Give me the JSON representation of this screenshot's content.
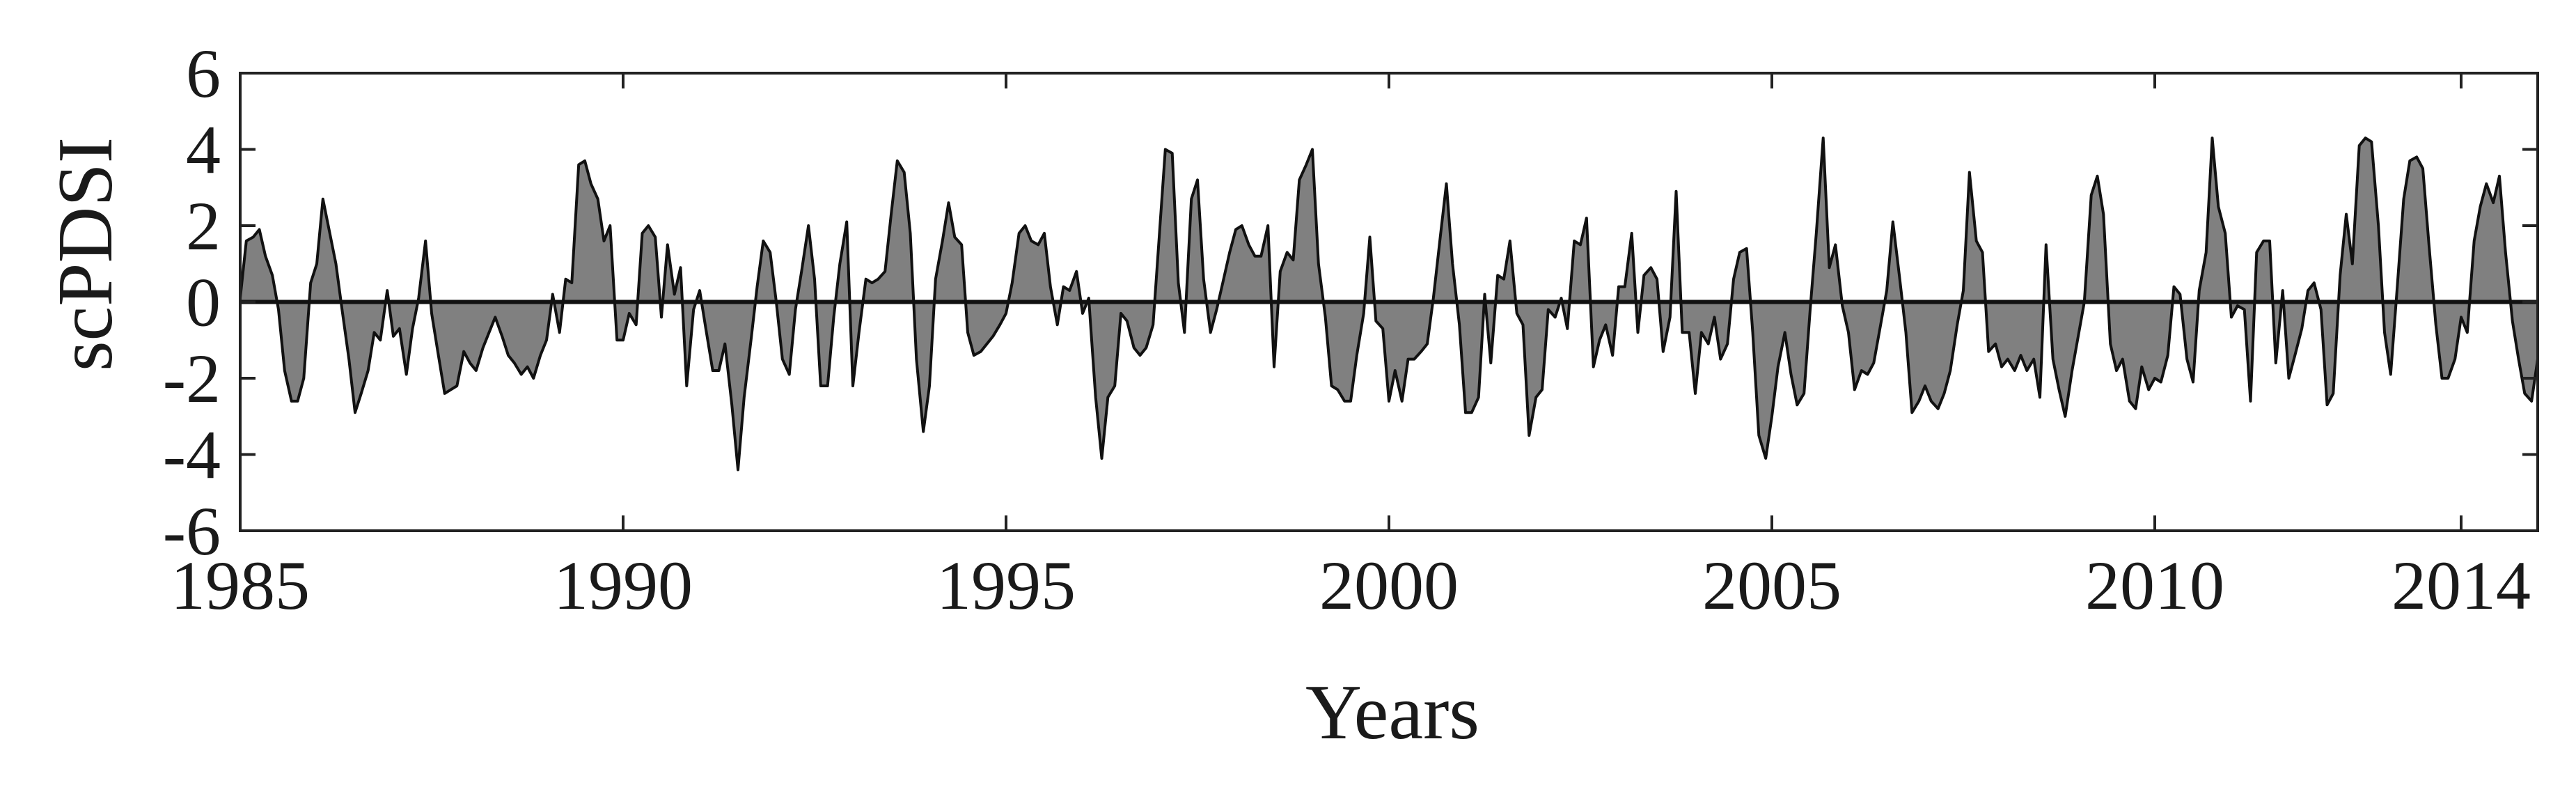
{
  "chart_data": {
    "type": "area",
    "title": "",
    "xlabel": "Years",
    "ylabel": "scPDSI",
    "xlim": [
      1985,
      2015
    ],
    "ylim": [
      -6,
      6
    ],
    "x_ticks": [
      1985,
      1990,
      1995,
      2000,
      2005,
      2010,
      2014
    ],
    "x_tick_labels": [
      "1985",
      "1990",
      "1995",
      "2000",
      "2005",
      "2010",
      "2014"
    ],
    "y_ticks": [
      -6,
      -4,
      -2,
      0,
      2,
      4,
      6
    ],
    "y_tick_labels": [
      "-6",
      "-4",
      "-2",
      "0",
      "2",
      "4",
      "6"
    ],
    "grid": false,
    "baseline": 0,
    "colors": {
      "fill": "#808080",
      "line": "#111111",
      "axis": "#222222"
    },
    "series": [
      {
        "x": [
          1985.0,
          1985.08,
          1985.17,
          1985.25,
          1985.33,
          1985.42,
          1985.5,
          1985.58,
          1985.67,
          1985.75,
          1985.83,
          1985.92,
          1986.0,
          1986.08,
          1986.17,
          1986.25,
          1986.33,
          1986.42,
          1986.5,
          1986.58,
          1986.67,
          1986.75,
          1986.83,
          1986.92,
          1987.0,
          1987.08,
          1987.17,
          1987.25,
          1987.33,
          1987.42,
          1987.5,
          1987.58,
          1987.67,
          1987.75,
          1987.83,
          1987.92,
          1988.0,
          1988.08,
          1988.17,
          1988.25,
          1988.33,
          1988.42,
          1988.5,
          1988.58,
          1988.67,
          1988.75,
          1988.83,
          1988.92,
          1989.0,
          1989.08,
          1989.17,
          1989.25,
          1989.33,
          1989.42,
          1989.5,
          1989.58,
          1989.67,
          1989.75,
          1989.83,
          1989.92,
          1990.0,
          1990.08,
          1990.17,
          1990.25,
          1990.33,
          1990.42,
          1990.5,
          1990.58,
          1990.67,
          1990.75,
          1990.83,
          1990.92,
          1991.0,
          1991.08,
          1991.17,
          1991.25,
          1991.33,
          1991.42,
          1991.5,
          1991.58,
          1991.67,
          1991.75,
          1991.83,
          1991.92,
          1992.0,
          1992.08,
          1992.17,
          1992.25,
          1992.33,
          1992.42,
          1992.5,
          1992.58,
          1992.67,
          1992.75,
          1992.83,
          1992.92,
          1993.0,
          1993.08,
          1993.17,
          1993.25,
          1993.33,
          1993.42,
          1993.5,
          1993.58,
          1993.67,
          1993.75,
          1993.83,
          1993.92,
          1994.0,
          1994.08,
          1994.17,
          1994.25,
          1994.33,
          1994.42,
          1994.5,
          1994.58,
          1994.67,
          1994.75,
          1994.83,
          1994.92,
          1995.0,
          1995.08,
          1995.17,
          1995.25,
          1995.33,
          1995.42,
          1995.5,
          1995.58,
          1995.67,
          1995.75,
          1995.83,
          1995.92,
          1996.0,
          1996.08,
          1996.17,
          1996.25,
          1996.33,
          1996.42,
          1996.5,
          1996.58,
          1996.67,
          1996.75,
          1996.83,
          1996.92,
          1997.0,
          1997.08,
          1997.17,
          1997.25,
          1997.33,
          1997.42,
          1997.5,
          1997.58,
          1997.67,
          1997.75,
          1997.83,
          1997.92,
          1998.0,
          1998.08,
          1998.17,
          1998.25,
          1998.33,
          1998.42,
          1998.5,
          1998.58,
          1998.67,
          1998.75,
          1998.83,
          1998.92,
          1999.0,
          1999.08,
          1999.17,
          1999.25,
          1999.33,
          1999.42,
          1999.5,
          1999.58,
          1999.67,
          1999.75,
          1999.83,
          1999.92,
          2000.0,
          2000.08,
          2000.17,
          2000.25,
          2000.33,
          2000.42,
          2000.5,
          2000.58,
          2000.67,
          2000.75,
          2000.83,
          2000.92,
          2001.0,
          2001.08,
          2001.17,
          2001.25,
          2001.33,
          2001.42,
          2001.5,
          2001.58,
          2001.67,
          2001.75,
          2001.83,
          2001.92,
          2002.0,
          2002.08,
          2002.17,
          2002.25,
          2002.33,
          2002.42,
          2002.5,
          2002.58,
          2002.67,
          2002.75,
          2002.83,
          2002.92,
          2003.0,
          2003.08,
          2003.17,
          2003.25,
          2003.33,
          2003.42,
          2003.5,
          2003.58,
          2003.67,
          2003.75,
          2003.83,
          2003.92,
          2004.0,
          2004.08,
          2004.17,
          2004.25,
          2004.33,
          2004.42,
          2004.5,
          2004.58,
          2004.67,
          2004.75,
          2004.83,
          2004.92,
          2005.0,
          2005.08,
          2005.17,
          2005.25,
          2005.33,
          2005.42,
          2005.5,
          2005.58,
          2005.67,
          2005.75,
          2005.83,
          2005.92,
          2006.0,
          2006.08,
          2006.17,
          2006.25,
          2006.33,
          2006.42,
          2006.5,
          2006.58,
          2006.67,
          2006.75,
          2006.83,
          2006.92,
          2007.0,
          2007.08,
          2007.17,
          2007.25,
          2007.33,
          2007.42,
          2007.5,
          2007.58,
          2007.67,
          2007.75,
          2007.83,
          2007.92,
          2008.0,
          2008.08,
          2008.17,
          2008.25,
          2008.33,
          2008.42,
          2008.5,
          2008.58,
          2008.67,
          2008.75,
          2008.83,
          2008.92,
          2009.0,
          2009.08,
          2009.17,
          2009.25,
          2009.33,
          2009.42,
          2009.5,
          2009.58,
          2009.67,
          2009.75,
          2009.83,
          2009.92,
          2010.0,
          2010.08,
          2010.17,
          2010.25,
          2010.33,
          2010.42,
          2010.5,
          2010.58,
          2010.67,
          2010.75,
          2010.83,
          2010.92,
          2011.0,
          2011.08,
          2011.17,
          2011.25,
          2011.33,
          2011.42,
          2011.5,
          2011.58,
          2011.67,
          2011.75,
          2011.83,
          2011.92,
          2012.0,
          2012.08,
          2012.17,
          2012.25,
          2012.33,
          2012.42,
          2012.5,
          2012.58,
          2012.67,
          2012.75,
          2012.83,
          2012.92,
          2013.0,
          2013.08,
          2013.17,
          2013.25,
          2013.33,
          2013.42,
          2013.5,
          2013.58,
          2013.67,
          2013.75,
          2013.83,
          2013.92,
          2014.0,
          2014.08,
          2014.17,
          2014.25,
          2014.33,
          2014.42,
          2014.5,
          2014.58,
          2014.67,
          2014.75,
          2014.83,
          2014.92,
          2015.0
        ],
        "y": [
          0.1,
          1.6,
          1.7,
          1.9,
          1.2,
          0.7,
          -0.2,
          -1.8,
          -2.6,
          -2.6,
          -2.0,
          0.5,
          1.0,
          2.7,
          1.8,
          1.0,
          -0.2,
          -1.5,
          -2.9,
          -2.4,
          -1.8,
          -0.8,
          -1.0,
          0.3,
          -0.9,
          -0.7,
          -1.9,
          -0.7,
          0.1,
          1.6,
          -0.3,
          -1.3,
          -2.4,
          -2.3,
          -2.2,
          -1.3,
          -1.6,
          -1.8,
          -1.2,
          -0.8,
          -0.4,
          -0.9,
          -1.4,
          -1.6,
          -1.9,
          -1.7,
          -2.0,
          -1.4,
          -1.0,
          0.2,
          -0.8,
          0.6,
          0.5,
          3.6,
          3.7,
          3.1,
          2.7,
          1.6,
          2.0,
          -1.0,
          -1.0,
          -0.3,
          -0.6,
          1.8,
          2.0,
          1.7,
          -0.4,
          1.5,
          0.2,
          0.9,
          -2.2,
          -0.2,
          0.3,
          -0.7,
          -1.8,
          -1.8,
          -1.1,
          -2.7,
          -4.4,
          -2.5,
          -1.0,
          0.4,
          1.6,
          1.3,
          0.0,
          -1.5,
          -1.9,
          -0.2,
          0.8,
          2.0,
          0.6,
          -2.2,
          -2.2,
          -0.4,
          1.0,
          2.1,
          -2.2,
          -0.8,
          0.6,
          0.5,
          0.6,
          0.8,
          2.3,
          3.7,
          3.4,
          1.8,
          -1.5,
          -3.4,
          -2.2,
          0.6,
          1.6,
          2.6,
          1.7,
          1.5,
          -0.8,
          -1.4,
          -1.3,
          -1.1,
          -0.9,
          -0.6,
          -0.3,
          0.5,
          1.8,
          2.0,
          1.6,
          1.5,
          1.8,
          0.4,
          -0.6,
          0.4,
          0.3,
          0.8,
          -0.3,
          0.1,
          -2.5,
          -4.1,
          -2.5,
          -2.2,
          -0.3,
          -0.5,
          -1.2,
          -1.4,
          -1.2,
          -0.6,
          1.7,
          4.0,
          3.9,
          0.5,
          -0.8,
          2.7,
          3.2,
          0.6,
          -0.8,
          -0.2,
          0.5,
          1.3,
          1.9,
          2.0,
          1.5,
          1.2,
          1.2,
          2.0,
          -1.7,
          0.8,
          1.3,
          1.1,
          3.2,
          3.6,
          4.0,
          1.0,
          -0.4,
          -2.2,
          -2.3,
          -2.6,
          -2.6,
          -1.4,
          -0.3,
          1.7,
          -0.5,
          -0.7,
          -2.6,
          -1.8,
          -2.6,
          -1.5,
          -1.5,
          -1.3,
          -1.1,
          0.1,
          1.7,
          3.1,
          1.0,
          -0.6,
          -2.9,
          -2.9,
          -2.5,
          0.2,
          -1.6,
          0.7,
          0.6,
          1.6,
          -0.3,
          -0.6,
          -3.5,
          -2.5,
          -2.3,
          -0.2,
          -0.4,
          0.1,
          -0.7,
          1.6,
          1.5,
          2.2,
          -1.7,
          -1.0,
          -0.6,
          -1.4,
          0.4,
          0.4,
          1.8,
          -0.8,
          0.7,
          0.9,
          0.6,
          -1.3,
          -0.4,
          2.9,
          -0.8,
          -0.8,
          -2.4,
          -0.8,
          -1.1,
          -0.4,
          -1.5,
          -1.1,
          0.6,
          1.3,
          1.4,
          -0.8,
          -3.5,
          -4.1,
          -3.0,
          -1.7,
          -0.8,
          -1.9,
          -2.7,
          -2.4,
          -0.2,
          1.8,
          4.3,
          0.9,
          1.5,
          -0.1,
          -0.8,
          -2.3,
          -1.8,
          -1.9,
          -1.6,
          -0.6,
          0.3,
          2.1,
          0.6,
          -0.8,
          -2.9,
          -2.6,
          -2.2,
          -2.6,
          -2.8,
          -2.4,
          -1.8,
          -0.6,
          0.3,
          3.4,
          1.6,
          1.3,
          -1.3,
          -1.1,
          -1.7,
          -1.5,
          -1.8,
          -1.4,
          -1.8,
          -1.5,
          -2.5,
          1.5,
          -1.5,
          -2.3,
          -3.0,
          -1.8,
          -0.9,
          0.0,
          2.8,
          3.3,
          2.3,
          -1.1,
          -1.8,
          -1.5,
          -2.6,
          -2.8,
          -1.7,
          -2.3,
          -2.0,
          -2.1,
          -1.4,
          0.4,
          0.2,
          -1.5,
          -2.1,
          0.3,
          1.3,
          4.3,
          2.5,
          1.8,
          -0.4,
          -0.1,
          -0.2,
          -2.6,
          1.3,
          1.6,
          1.6,
          -1.6,
          0.3,
          -2.0,
          -1.4,
          -0.7,
          0.3,
          0.5,
          -0.2,
          -2.7,
          -2.4,
          0.7,
          2.3,
          1.0,
          4.1,
          4.3,
          4.2,
          2.0,
          -0.8,
          -1.9,
          0.5,
          2.7,
          3.7,
          3.8,
          3.5,
          1.5,
          -0.6,
          -2.0,
          -2.0,
          -1.5,
          -0.4,
          -0.8,
          1.6,
          2.5,
          3.1,
          2.6,
          3.3,
          1.3,
          -0.5,
          -1.5,
          -2.4,
          -2.6,
          -1.5
        ]
      }
    ]
  }
}
